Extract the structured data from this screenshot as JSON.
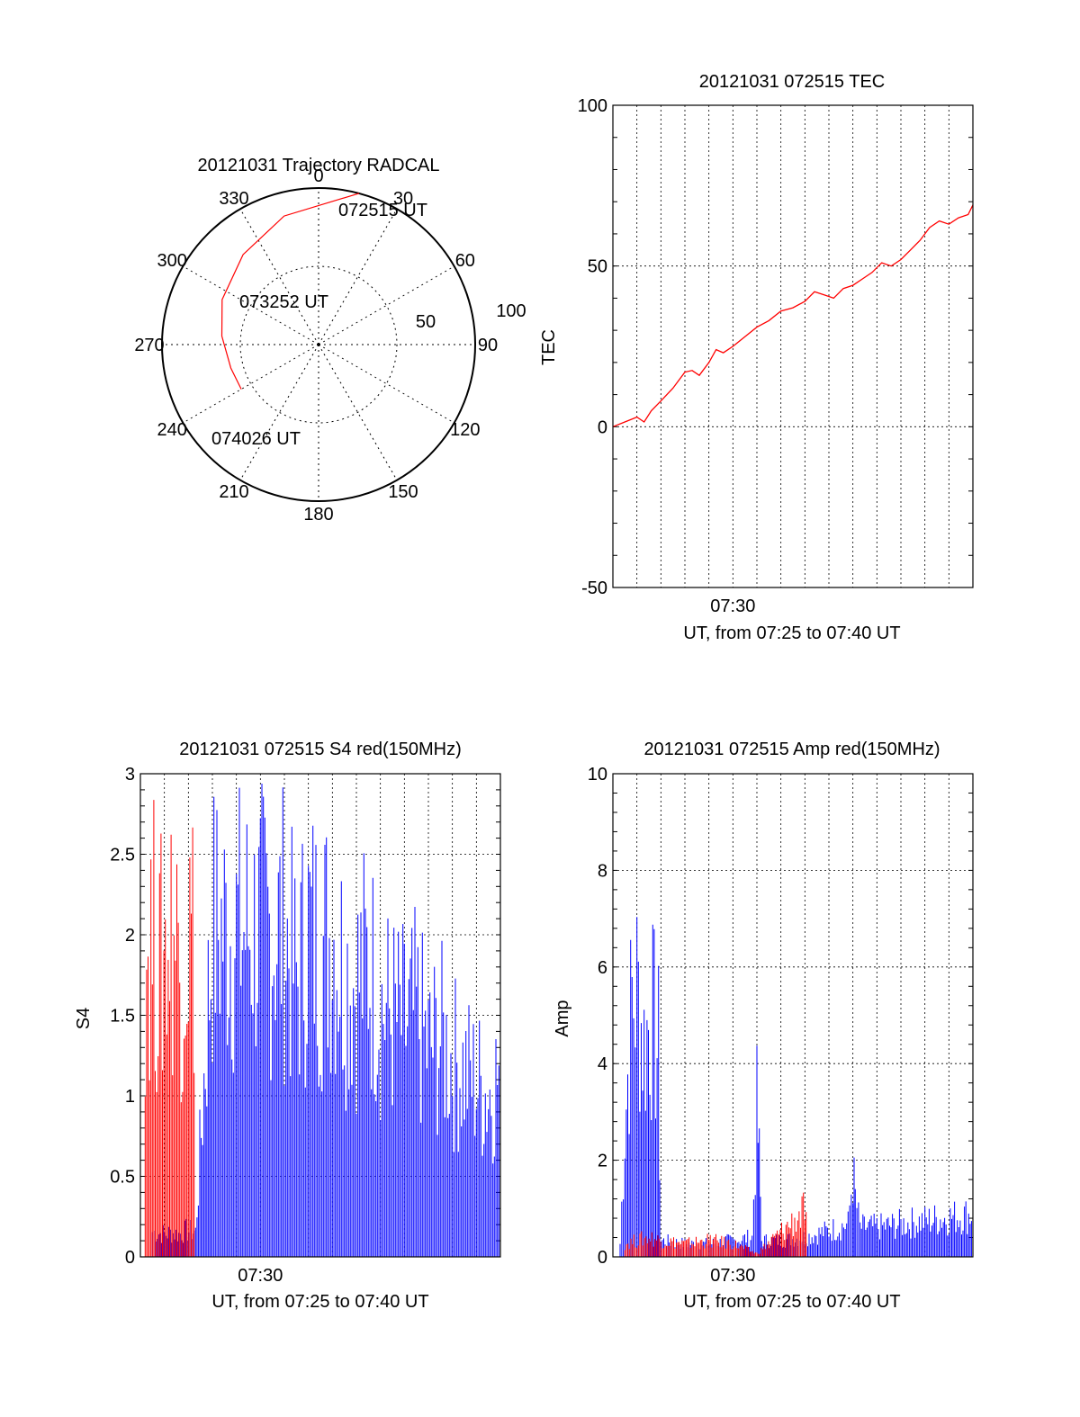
{
  "chart_data": [
    {
      "type": "polar-trajectory",
      "title": "20121031 Trajectory RADCAL",
      "angle_labels": [
        "0",
        "30",
        "60",
        "90",
        "120",
        "150",
        "180",
        "210",
        "240",
        "270",
        "300",
        "330"
      ],
      "radius_labels": [
        "50",
        "100"
      ],
      "rlim": [
        0,
        100
      ],
      "grid": true,
      "series": [
        {
          "color": "#ff0000",
          "points": [
            {
              "az": 15,
              "r": 100
            },
            {
              "az": 345,
              "r": 85
            },
            {
              "az": 320,
              "r": 75
            },
            {
              "az": 295,
              "r": 68
            },
            {
              "az": 275,
              "r": 62
            },
            {
              "az": 255,
              "r": 58
            },
            {
              "az": 240,
              "r": 57
            }
          ]
        }
      ],
      "annotations": [
        {
          "text": "072515 UT",
          "az": 15,
          "r": 100
        },
        {
          "text": "073252 UT",
          "az": 295,
          "r": 68
        },
        {
          "text": "074026 UT",
          "az": 240,
          "r": 57
        }
      ]
    },
    {
      "type": "line",
      "title": "20121031 072515 TEC",
      "xlabel": "UT, from 07:25 to 07:40 UT",
      "ylabel": "TEC",
      "x_unit": "minutes after 07:25 UT",
      "xlim": [
        0,
        15
      ],
      "ylim": [
        -50,
        100
      ],
      "y_ticks": [
        "-50",
        "0",
        "50",
        "100"
      ],
      "x_ticks": [
        {
          "value": 5,
          "label": "07:30"
        }
      ],
      "grid": true,
      "series": [
        {
          "color": "#ff0000",
          "x": [
            0,
            0.5,
            1,
            1.3,
            1.6,
            2,
            2.5,
            3,
            3.3,
            3.6,
            4,
            4.3,
            4.6,
            5,
            5.5,
            6,
            6.5,
            7,
            7.5,
            8,
            8.4,
            8.8,
            9.2,
            9.6,
            10,
            10.4,
            10.8,
            11.2,
            11.6,
            12,
            12.4,
            12.8,
            13.2,
            13.6,
            14,
            14.4,
            14.8,
            15
          ],
          "y": [
            0,
            1.5,
            3,
            1.5,
            5,
            8,
            12,
            17,
            17.5,
            16,
            20,
            24,
            23,
            25,
            28,
            31,
            33,
            36,
            37,
            39,
            42,
            41,
            40,
            43,
            44,
            46,
            48,
            51,
            50,
            52,
            55,
            58,
            62,
            64,
            63,
            65,
            66,
            69
          ]
        }
      ]
    },
    {
      "type": "line",
      "title": "20121031 072515 S4 red(150MHz)",
      "xlabel": "UT, from 07:25 to 07:40 UT",
      "ylabel": "S4",
      "x_unit": "minutes after 07:25 UT",
      "xlim": [
        0,
        15
      ],
      "ylim": [
        0,
        3
      ],
      "y_ticks": [
        "0",
        "0.5",
        "1",
        "1.5",
        "2",
        "2.5",
        "3"
      ],
      "x_ticks": [
        {
          "value": 5,
          "label": "07:30"
        }
      ],
      "grid": true,
      "series": [
        {
          "color": "#0000ff",
          "x": [
            0.5,
            0.7,
            1,
            1.3,
            1.6,
            1.9,
            2.3,
            3,
            3.5,
            4,
            4.5,
            5,
            5.5,
            6,
            6.5,
            7,
            7.5,
            8,
            8.5,
            9,
            9.5,
            10,
            10.5,
            11,
            11.5,
            12,
            12.5,
            13,
            13.5,
            14,
            14.5,
            15
          ],
          "y": [
            0.23,
            0.22,
            0.21,
            0.22,
            0.21,
            0.24,
            0.23,
            3.0,
            3.0,
            3.0,
            3.0,
            3.0,
            3.0,
            3.0,
            2.5,
            3.0,
            2.8,
            3.0,
            2.6,
            2.5,
            2.7,
            2.3,
            2.2,
            2.1,
            2.2,
            1.9,
            2.0,
            1.8,
            1.7,
            1.6,
            1.5,
            1.7
          ]
        },
        {
          "color": "#ff0000",
          "x": [
            0.2,
            0.5,
            0.8,
            1.1,
            1.4,
            1.7,
            2.0,
            2.3
          ],
          "y": [
            2.8,
            3.0,
            2.6,
            2.9,
            3.0,
            2.7,
            3.0,
            2.9
          ]
        }
      ]
    },
    {
      "type": "line",
      "title": "20121031 072515 Amp red(150MHz)",
      "xlabel": "UT, from 07:25 to 07:40 UT",
      "ylabel": "Amp",
      "x_unit": "minutes after 07:25 UT",
      "xlim": [
        0,
        15
      ],
      "ylim": [
        0,
        10
      ],
      "y_ticks": [
        "0",
        "2",
        "4",
        "6",
        "8",
        "10"
      ],
      "x_ticks": [
        {
          "value": 5,
          "label": "07:30"
        }
      ],
      "grid": true,
      "series": [
        {
          "color": "#0000ff",
          "x": [
            0.3,
            0.5,
            0.8,
            1.0,
            1.3,
            1.6,
            1.9,
            2.0,
            3,
            4,
            5,
            5.8,
            6.0,
            6.1,
            6.2,
            7,
            8,
            9,
            9.8,
            10.0,
            10.1,
            10.3,
            11,
            12,
            13,
            14,
            15
          ],
          "y": [
            0.4,
            4.0,
            7.9,
            8.2,
            6.5,
            7.4,
            6.2,
            0.5,
            0.4,
            0.4,
            0.5,
            0.6,
            4.4,
            2.9,
            0.5,
            0.5,
            0.6,
            0.8,
            1.0,
            2.6,
            1.8,
            0.9,
            0.9,
            1.0,
            1.1,
            1.2,
            1.3
          ]
        },
        {
          "color": "#ff0000",
          "x": [
            0.5,
            1.0,
            1.5,
            2.0,
            3,
            4,
            5,
            6,
            8.0,
            8.1
          ],
          "y": [
            0.4,
            0.5,
            0.6,
            0.5,
            0.4,
            0.5,
            0.4,
            0.1,
            1.4,
            0.5
          ]
        }
      ]
    }
  ]
}
